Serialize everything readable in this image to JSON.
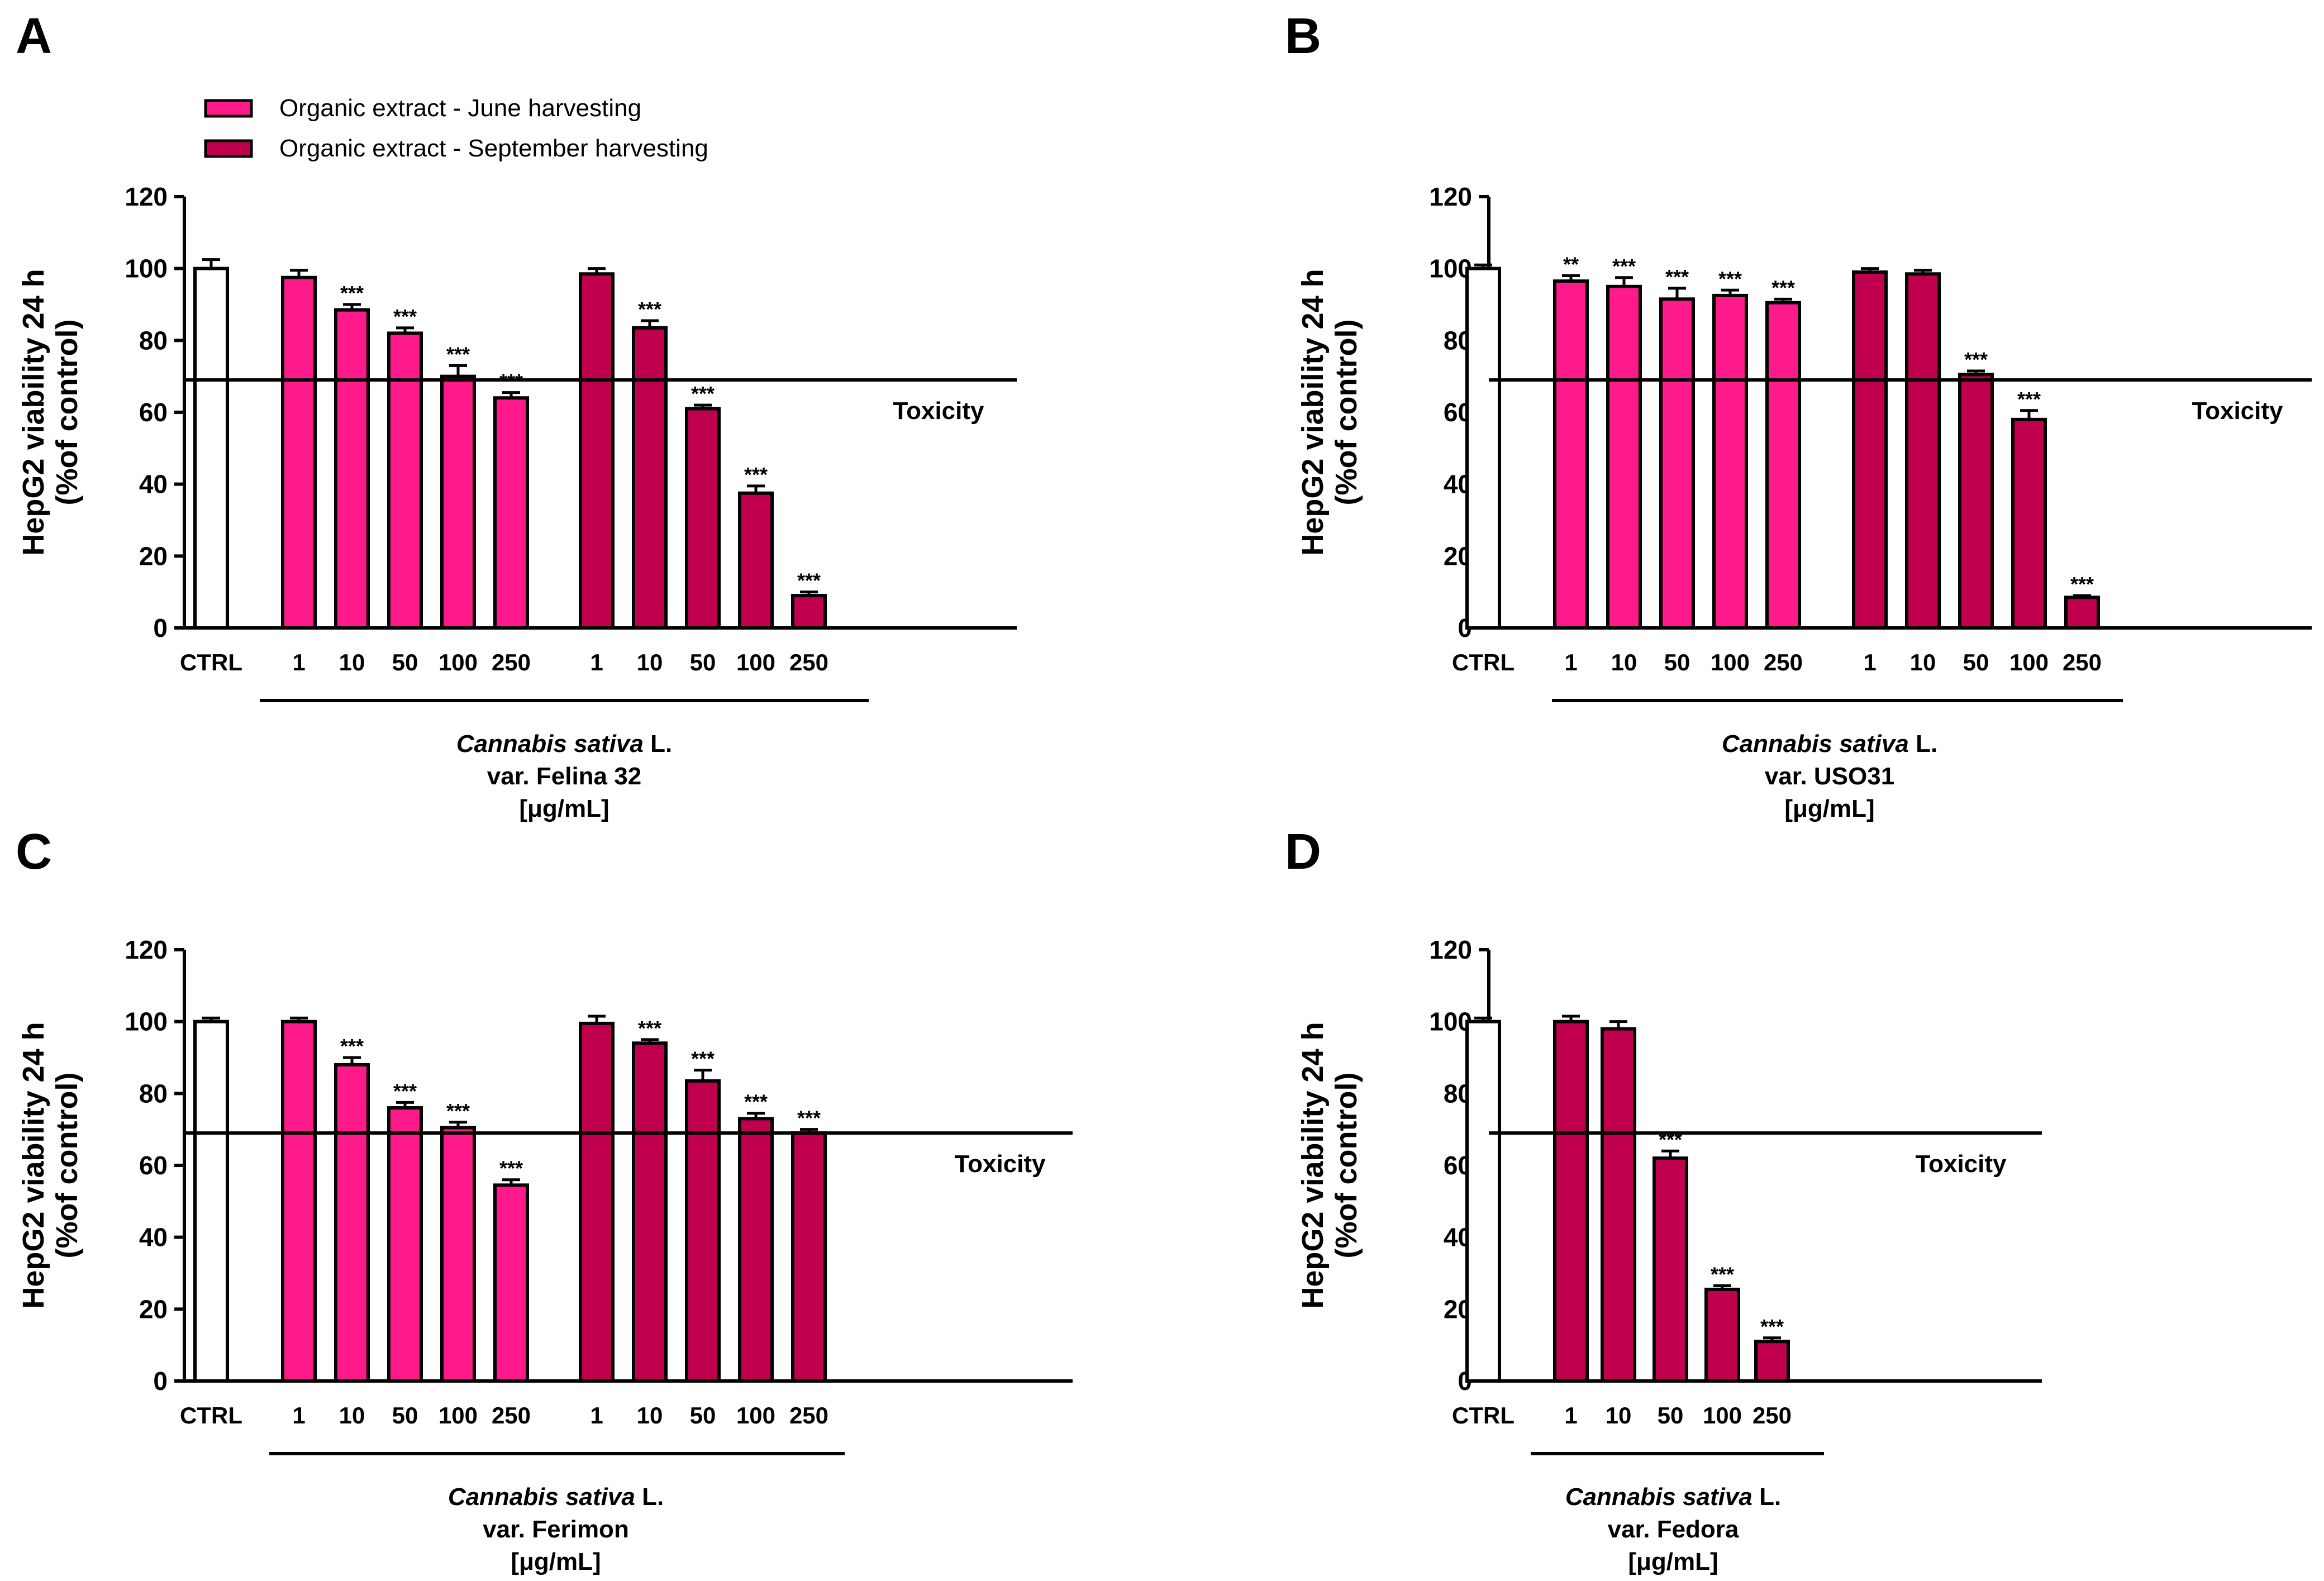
{
  "figure": {
    "legend": [
      {
        "label": "Organic extract - June harvesting",
        "color": "#FF1A8C"
      },
      {
        "label": "Organic extract - September harvesting",
        "color": "#C0004E"
      }
    ],
    "colors": {
      "june": "#FF1A8C",
      "september": "#C0004E",
      "ctrl": "#FFFFFF",
      "stroke": "#000000"
    }
  },
  "chart_data": [
    {
      "panel": "A",
      "type": "bar",
      "ylabel": "HepG2 viability 24 h",
      "ylabel2": "(%of control)",
      "ylim": [
        0,
        120
      ],
      "yticks": [
        0,
        20,
        40,
        60,
        80,
        100,
        120
      ],
      "toxicity_threshold": 69,
      "toxicity_label": "Toxicity",
      "group_label": {
        "species": "Cannabis sativa",
        "author": " L.",
        "variety": "var. Felina 32",
        "unit": "[μg/mL]"
      },
      "ctrl": {
        "label": "CTRL",
        "value": 100,
        "err": 2.5,
        "sig": ""
      },
      "series": [
        {
          "name": "Organic extract - June harvesting",
          "categories": [
            "1",
            "10",
            "50",
            "100",
            "250"
          ],
          "values": [
            97.5,
            88.5,
            82,
            70,
            64
          ],
          "errors": [
            2,
            1.5,
            1.5,
            3,
            1.5
          ],
          "sig": [
            "",
            "***",
            "***",
            "***",
            "***"
          ]
        },
        {
          "name": "Organic extract - September harvesting",
          "categories": [
            "1",
            "10",
            "50",
            "100",
            "250"
          ],
          "values": [
            98.5,
            83.5,
            61,
            37.5,
            9
          ],
          "errors": [
            1.5,
            2,
            1,
            2,
            1
          ],
          "sig": [
            "",
            "***",
            "***",
            "***",
            "***"
          ]
        }
      ]
    },
    {
      "panel": "B",
      "type": "bar",
      "ylabel": "HepG2 viability 24 h",
      "ylabel2": "(%of control)",
      "ylim": [
        0,
        120
      ],
      "yticks": [
        0,
        20,
        40,
        60,
        80,
        100,
        120
      ],
      "toxicity_threshold": 69,
      "toxicity_label": "Toxicity",
      "group_label": {
        "species": "Cannabis sativa",
        "author": " L.",
        "variety": "var. USO31",
        "unit": "[μg/mL]"
      },
      "ctrl": {
        "label": "CTRL",
        "value": 100,
        "err": 1,
        "sig": ""
      },
      "series": [
        {
          "name": "Organic extract - June harvesting",
          "categories": [
            "1",
            "10",
            "50",
            "100",
            "250"
          ],
          "values": [
            96.5,
            95,
            91.5,
            92.5,
            90.5
          ],
          "errors": [
            1.5,
            2.5,
            3,
            1.5,
            1
          ],
          "sig": [
            "**",
            "***",
            "***",
            "***",
            "***"
          ]
        },
        {
          "name": "Organic extract - September harvesting",
          "categories": [
            "1",
            "10",
            "50",
            "100",
            "250"
          ],
          "values": [
            99,
            98.5,
            70.5,
            58,
            8.5
          ],
          "errors": [
            1,
            1,
            1,
            2.5,
            0.5
          ],
          "sig": [
            "",
            "",
            "***",
            "***",
            "***"
          ]
        }
      ]
    },
    {
      "panel": "C",
      "type": "bar",
      "ylabel": "HepG2 viability 24 h",
      "ylabel2": "(%of control)",
      "ylim": [
        0,
        120
      ],
      "yticks": [
        0,
        20,
        40,
        60,
        80,
        100,
        120
      ],
      "toxicity_threshold": 69,
      "toxicity_label": "Toxicity",
      "group_label": {
        "species": "Cannabis sativa",
        "author": " L.",
        "variety": "var. Ferimon",
        "unit": "[μg/mL]"
      },
      "ctrl": {
        "label": "CTRL",
        "value": 100,
        "err": 1,
        "sig": ""
      },
      "series": [
        {
          "name": "Organic extract - June harvesting",
          "categories": [
            "1",
            "10",
            "50",
            "100",
            "250"
          ],
          "values": [
            100,
            88,
            76,
            70.5,
            54.5
          ],
          "errors": [
            1,
            2,
            1.5,
            1.5,
            1.5
          ],
          "sig": [
            "",
            "***",
            "***",
            "***",
            "***"
          ]
        },
        {
          "name": "Organic extract - September harvesting",
          "categories": [
            "1",
            "10",
            "50",
            "100",
            "250"
          ],
          "values": [
            99.5,
            94,
            83.5,
            73,
            69
          ],
          "errors": [
            2,
            1,
            3,
            1.5,
            1
          ],
          "sig": [
            "",
            "***",
            "***",
            "***",
            "***"
          ]
        }
      ]
    },
    {
      "panel": "D",
      "type": "bar",
      "ylabel": "HepG2 viability 24 h",
      "ylabel2": "(%of control)",
      "ylim": [
        0,
        120
      ],
      "yticks": [
        0,
        20,
        40,
        60,
        80,
        100,
        120
      ],
      "toxicity_threshold": 69,
      "toxicity_label": "Toxicity",
      "group_label": {
        "species": "Cannabis sativa",
        "author": " L.",
        "variety": "var. Fedora",
        "unit": "[μg/mL]"
      },
      "ctrl": {
        "label": "CTRL",
        "value": 100,
        "err": 1,
        "sig": ""
      },
      "series": [
        {
          "name": "Organic extract - September harvesting",
          "categories": [
            "1",
            "10",
            "50",
            "100",
            "250"
          ],
          "values": [
            100,
            98,
            62,
            25.5,
            11
          ],
          "errors": [
            1.5,
            2,
            2,
            1,
            1
          ],
          "sig": [
            "",
            "",
            "***",
            "***",
            "***"
          ]
        }
      ]
    }
  ]
}
